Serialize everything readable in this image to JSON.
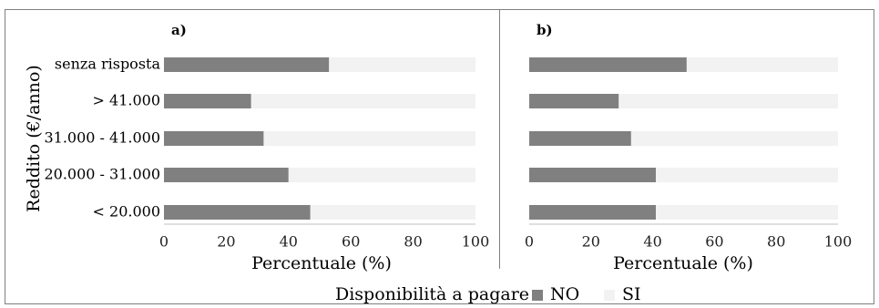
{
  "chart_data": {
    "type": "bar",
    "orientation": "horizontal",
    "stacked": true,
    "ylabel": "Reddito (€/anno)",
    "categories": [
      "senza risposta",
      "> 41.000",
      "31.000 - 41.000",
      "20.000 - 31.000",
      "< 20.000"
    ],
    "legend": {
      "title": "Disponibilità a pagare",
      "placement": "bottom",
      "items": [
        "NO",
        "SI"
      ]
    },
    "colors": {
      "NO": "#808080",
      "SI": "#f2f2f2",
      "axis": "#bfbfbf",
      "frame": "#808080"
    },
    "panels": [
      {
        "panel_label": "a)",
        "xlabel": "Percentuale (%)",
        "xlim": [
          0,
          100
        ],
        "xticks": [
          0,
          20,
          40,
          60,
          80,
          100
        ],
        "series": [
          {
            "name": "NO",
            "values": [
              53,
              28,
              32,
              40,
              47
            ]
          },
          {
            "name": "SI",
            "values": [
              47,
              72,
              68,
              60,
              53
            ]
          }
        ]
      },
      {
        "panel_label": "b)",
        "xlabel": "Percentuale (%)",
        "xlim": [
          0,
          100
        ],
        "xticks": [
          0,
          20,
          40,
          60,
          80,
          100
        ],
        "series": [
          {
            "name": "NO",
            "values": [
              51,
              29,
              33,
              41,
              41
            ]
          },
          {
            "name": "SI",
            "values": [
              49,
              71,
              67,
              59,
              59
            ]
          }
        ]
      }
    ]
  }
}
